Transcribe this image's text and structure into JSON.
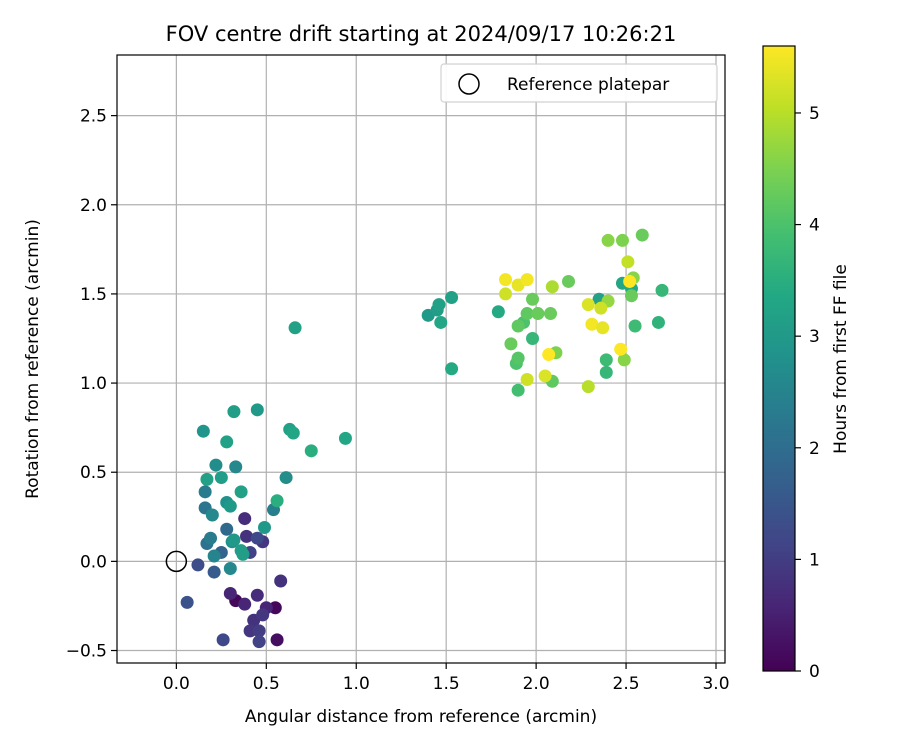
{
  "chart_data": {
    "type": "scatter",
    "title": "FOV centre drift starting at 2024/09/17 10:26:21",
    "xlabel": "Angular distance from reference (arcmin)",
    "ylabel": "Rotation from reference (arcmin)",
    "xlim": [
      -0.33,
      3.05
    ],
    "ylim": [
      -0.57,
      2.84
    ],
    "xticks": [
      0.0,
      0.5,
      1.0,
      1.5,
      2.0,
      2.5,
      3.0
    ],
    "xtick_labels": [
      "0.0",
      "0.5",
      "1.0",
      "1.5",
      "2.0",
      "2.5",
      "3.0"
    ],
    "yticks": [
      -0.5,
      0.0,
      0.5,
      1.0,
      1.5,
      2.0,
      2.5
    ],
    "ytick_labels": [
      "−0.5",
      "0.0",
      "0.5",
      "1.0",
      "1.5",
      "2.0",
      "2.5"
    ],
    "grid": true,
    "legend": {
      "placement": "top-right",
      "entries": [
        "Reference platepar"
      ]
    },
    "reference_point": {
      "x": 0.0,
      "y": 0.0,
      "marker": "open-circle",
      "label": "Reference platepar"
    },
    "colorbar": {
      "label": "Hours from first FF file",
      "colormap": "viridis",
      "range": [
        0,
        5.6
      ],
      "ticks": [
        0,
        1,
        2,
        3,
        4,
        5
      ],
      "tick_labels": [
        "0",
        "1",
        "2",
        "3",
        "4",
        "5"
      ]
    },
    "points": [
      {
        "x": 0.33,
        "y": -0.22,
        "c": 0.1
      },
      {
        "x": 0.55,
        "y": -0.26,
        "c": 0.1
      },
      {
        "x": 0.56,
        "y": -0.44,
        "c": 0.2
      },
      {
        "x": 0.5,
        "y": -0.26,
        "c": 0.6
      },
      {
        "x": 0.38,
        "y": -0.24,
        "c": 0.6
      },
      {
        "x": 0.3,
        "y": -0.18,
        "c": 0.6
      },
      {
        "x": 0.45,
        "y": -0.19,
        "c": 0.7
      },
      {
        "x": 0.58,
        "y": -0.11,
        "c": 0.8
      },
      {
        "x": 0.43,
        "y": -0.33,
        "c": 0.8
      },
      {
        "x": 0.48,
        "y": -0.3,
        "c": 0.9
      },
      {
        "x": 0.41,
        "y": -0.39,
        "c": 0.9
      },
      {
        "x": 0.46,
        "y": -0.39,
        "c": 1.0
      },
      {
        "x": 0.46,
        "y": -0.45,
        "c": 1.1
      },
      {
        "x": 0.26,
        "y": -0.44,
        "c": 1.2
      },
      {
        "x": 0.38,
        "y": 0.24,
        "c": 0.7
      },
      {
        "x": 0.39,
        "y": 0.14,
        "c": 0.8
      },
      {
        "x": 0.48,
        "y": 0.11,
        "c": 0.9
      },
      {
        "x": 0.45,
        "y": 0.13,
        "c": 1.2
      },
      {
        "x": 0.41,
        "y": 0.05,
        "c": 1.1
      },
      {
        "x": 0.12,
        "y": -0.02,
        "c": 1.3
      },
      {
        "x": 0.06,
        "y": -0.23,
        "c": 1.4
      },
      {
        "x": 0.21,
        "y": -0.06,
        "c": 1.6
      },
      {
        "x": 0.25,
        "y": 0.05,
        "c": 1.8
      },
      {
        "x": 0.28,
        "y": 0.18,
        "c": 1.9
      },
      {
        "x": 0.17,
        "y": 0.1,
        "c": 2.1
      },
      {
        "x": 0.19,
        "y": 0.13,
        "c": 2.3
      },
      {
        "x": 0.21,
        "y": 0.03,
        "c": 2.5
      },
      {
        "x": 0.3,
        "y": -0.04,
        "c": 2.6
      },
      {
        "x": 0.31,
        "y": 0.11,
        "c": 2.8
      },
      {
        "x": 0.36,
        "y": 0.06,
        "c": 3.1
      },
      {
        "x": 0.37,
        "y": 0.04,
        "c": 3.1
      },
      {
        "x": 0.32,
        "y": 0.12,
        "c": 3.0
      },
      {
        "x": 0.16,
        "y": 0.3,
        "c": 2.2
      },
      {
        "x": 0.16,
        "y": 0.39,
        "c": 2.3
      },
      {
        "x": 0.2,
        "y": 0.26,
        "c": 2.6
      },
      {
        "x": 0.22,
        "y": 0.54,
        "c": 2.7
      },
      {
        "x": 0.28,
        "y": 0.33,
        "c": 2.8
      },
      {
        "x": 0.3,
        "y": 0.31,
        "c": 3.0
      },
      {
        "x": 0.25,
        "y": 0.47,
        "c": 3.1
      },
      {
        "x": 0.17,
        "y": 0.46,
        "c": 3.2
      },
      {
        "x": 0.33,
        "y": 0.53,
        "c": 2.6
      },
      {
        "x": 0.36,
        "y": 0.39,
        "c": 3.2
      },
      {
        "x": 0.49,
        "y": 0.19,
        "c": 3.0
      },
      {
        "x": 0.54,
        "y": 0.29,
        "c": 2.4
      },
      {
        "x": 0.56,
        "y": 0.34,
        "c": 3.5
      },
      {
        "x": 0.61,
        "y": 0.47,
        "c": 2.7
      },
      {
        "x": 0.15,
        "y": 0.73,
        "c": 2.9
      },
      {
        "x": 0.28,
        "y": 0.67,
        "c": 3.2
      },
      {
        "x": 0.32,
        "y": 0.84,
        "c": 3.1
      },
      {
        "x": 0.45,
        "y": 0.85,
        "c": 3.0
      },
      {
        "x": 0.63,
        "y": 0.74,
        "c": 3.2
      },
      {
        "x": 0.65,
        "y": 0.72,
        "c": 3.3
      },
      {
        "x": 0.66,
        "y": 1.31,
        "c": 3.2
      },
      {
        "x": 0.75,
        "y": 0.62,
        "c": 3.5
      },
      {
        "x": 0.94,
        "y": 0.69,
        "c": 3.3
      },
      {
        "x": 1.4,
        "y": 1.38,
        "c": 3.0
      },
      {
        "x": 1.45,
        "y": 1.41,
        "c": 3.1
      },
      {
        "x": 1.46,
        "y": 1.44,
        "c": 3.2
      },
      {
        "x": 1.47,
        "y": 1.34,
        "c": 3.3
      },
      {
        "x": 1.53,
        "y": 1.48,
        "c": 3.2
      },
      {
        "x": 1.53,
        "y": 1.08,
        "c": 3.4
      },
      {
        "x": 1.79,
        "y": 1.4,
        "c": 3.4
      },
      {
        "x": 2.35,
        "y": 1.47,
        "c": 3.2
      },
      {
        "x": 2.48,
        "y": 1.56,
        "c": 3.3
      },
      {
        "x": 2.53,
        "y": 1.53,
        "c": 3.4
      },
      {
        "x": 2.68,
        "y": 1.34,
        "c": 3.6
      },
      {
        "x": 2.7,
        "y": 1.52,
        "c": 3.7
      },
      {
        "x": 2.55,
        "y": 1.32,
        "c": 3.8
      },
      {
        "x": 2.39,
        "y": 1.13,
        "c": 3.8
      },
      {
        "x": 2.39,
        "y": 1.06,
        "c": 3.7
      },
      {
        "x": 1.98,
        "y": 1.25,
        "c": 3.7
      },
      {
        "x": 1.9,
        "y": 0.96,
        "c": 3.9
      },
      {
        "x": 1.89,
        "y": 1.11,
        "c": 4.0
      },
      {
        "x": 1.9,
        "y": 1.14,
        "c": 4.1
      },
      {
        "x": 1.93,
        "y": 1.34,
        "c": 4.0
      },
      {
        "x": 1.9,
        "y": 1.32,
        "c": 4.2
      },
      {
        "x": 1.86,
        "y": 1.22,
        "c": 4.3
      },
      {
        "x": 1.95,
        "y": 1.39,
        "c": 4.2
      },
      {
        "x": 1.98,
        "y": 1.47,
        "c": 4.3
      },
      {
        "x": 2.01,
        "y": 1.39,
        "c": 4.3
      },
      {
        "x": 2.08,
        "y": 1.39,
        "c": 4.3
      },
      {
        "x": 2.09,
        "y": 1.01,
        "c": 4.2
      },
      {
        "x": 2.11,
        "y": 1.17,
        "c": 4.5
      },
      {
        "x": 2.18,
        "y": 1.57,
        "c": 4.3
      },
      {
        "x": 2.09,
        "y": 1.54,
        "c": 4.9
      },
      {
        "x": 2.53,
        "y": 1.49,
        "c": 4.3
      },
      {
        "x": 2.49,
        "y": 1.13,
        "c": 4.6
      },
      {
        "x": 2.4,
        "y": 1.46,
        "c": 4.7
      },
      {
        "x": 2.4,
        "y": 1.8,
        "c": 4.6
      },
      {
        "x": 2.48,
        "y": 1.8,
        "c": 4.5
      },
      {
        "x": 2.59,
        "y": 1.83,
        "c": 4.3
      },
      {
        "x": 2.51,
        "y": 1.68,
        "c": 5.1
      },
      {
        "x": 2.54,
        "y": 1.59,
        "c": 4.6
      },
      {
        "x": 1.83,
        "y": 1.58,
        "c": 5.5
      },
      {
        "x": 1.83,
        "y": 1.5,
        "c": 5.2
      },
      {
        "x": 1.9,
        "y": 1.55,
        "c": 5.4
      },
      {
        "x": 1.95,
        "y": 1.58,
        "c": 5.5
      },
      {
        "x": 2.07,
        "y": 1.16,
        "c": 5.6
      },
      {
        "x": 2.05,
        "y": 1.04,
        "c": 5.3
      },
      {
        "x": 1.95,
        "y": 1.02,
        "c": 5.2
      },
      {
        "x": 2.29,
        "y": 1.44,
        "c": 5.3
      },
      {
        "x": 2.31,
        "y": 1.33,
        "c": 5.5
      },
      {
        "x": 2.36,
        "y": 1.42,
        "c": 5.2
      },
      {
        "x": 2.37,
        "y": 1.31,
        "c": 5.4
      },
      {
        "x": 2.47,
        "y": 1.19,
        "c": 5.6
      },
      {
        "x": 2.52,
        "y": 1.57,
        "c": 5.6
      },
      {
        "x": 2.29,
        "y": 0.98,
        "c": 5.0
      }
    ]
  }
}
